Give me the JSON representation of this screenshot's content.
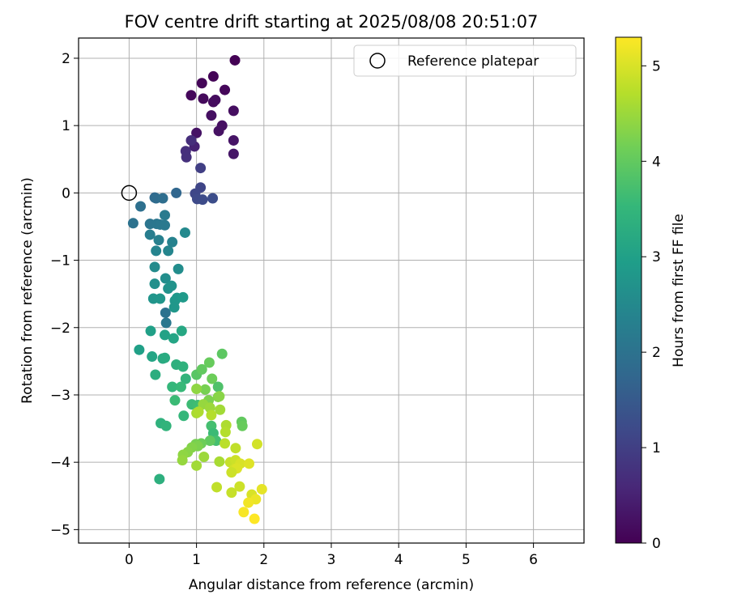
{
  "chart_data": {
    "type": "scatter",
    "title": "FOV centre drift starting at 2025/08/08 20:51:07",
    "xlabel": "Angular distance from reference (arcmin)",
    "ylabel": "Rotation from reference (arcmin)",
    "xlim": [
      -0.75,
      6.75
    ],
    "ylim": [
      -5.2,
      2.3
    ],
    "xticks": [
      0,
      1,
      2,
      3,
      4,
      5,
      6
    ],
    "yticks": [
      2,
      1,
      0,
      -1,
      -2,
      -3,
      -4,
      -5
    ],
    "grid": true,
    "legend": {
      "placement": "top-right",
      "entries": [
        "Reference platepar"
      ]
    },
    "reference_point": {
      "name": "Reference platepar",
      "x": 0,
      "y": 0
    },
    "colorbar": {
      "label": "Hours from first FF file",
      "colormap": "viridis",
      "range": [
        0,
        5.3
      ],
      "ticks": [
        0,
        1,
        2,
        3,
        4,
        5
      ]
    },
    "series": [
      {
        "name": "",
        "points": [
          [
            1.57,
            1.97,
            0.02
          ],
          [
            1.25,
            1.73,
            0.05
          ],
          [
            1.08,
            1.63,
            0.07
          ],
          [
            1.42,
            1.53,
            0.09
          ],
          [
            0.92,
            1.45,
            0.11
          ],
          [
            1.1,
            1.4,
            0.13
          ],
          [
            1.25,
            1.35,
            0.15
          ],
          [
            1.28,
            1.38,
            0.17
          ],
          [
            1.55,
            1.22,
            0.19
          ],
          [
            1.22,
            1.15,
            0.21
          ],
          [
            1.38,
            1.0,
            0.23
          ],
          [
            1.33,
            0.92,
            0.25
          ],
          [
            1.0,
            0.89,
            0.27
          ],
          [
            1.55,
            0.78,
            0.29
          ],
          [
            1.55,
            0.58,
            0.31
          ],
          [
            0.97,
            0.69,
            0.5
          ],
          [
            0.92,
            0.78,
            0.7
          ],
          [
            0.84,
            0.62,
            0.72
          ],
          [
            0.85,
            0.53,
            0.74
          ],
          [
            1.06,
            0.37,
            1.0
          ],
          [
            1.06,
            0.08,
            1.1
          ],
          [
            0.98,
            -0.01,
            1.15
          ],
          [
            1.01,
            -0.09,
            1.2
          ],
          [
            1.09,
            -0.1,
            1.22
          ],
          [
            1.24,
            -0.08,
            1.26
          ],
          [
            0.7,
            0.0,
            1.75
          ],
          [
            0.38,
            -0.07,
            1.8
          ],
          [
            0.4,
            -0.08,
            1.85
          ],
          [
            0.5,
            -0.08,
            1.9
          ],
          [
            0.17,
            -0.2,
            1.95
          ],
          [
            0.06,
            -0.45,
            2.0
          ],
          [
            0.31,
            -0.46,
            2.05
          ],
          [
            0.41,
            -0.46,
            2.08
          ],
          [
            0.46,
            -0.47,
            2.1
          ],
          [
            0.53,
            -0.48,
            2.15
          ],
          [
            0.53,
            -0.33,
            2.2
          ],
          [
            0.31,
            -0.62,
            2.25
          ],
          [
            0.44,
            -0.7,
            2.3
          ],
          [
            0.64,
            -0.73,
            2.35
          ],
          [
            0.4,
            -0.86,
            2.4
          ],
          [
            0.58,
            -0.86,
            2.42
          ],
          [
            0.83,
            -0.59,
            2.5
          ],
          [
            0.38,
            -1.1,
            2.55
          ],
          [
            0.73,
            -1.13,
            2.58
          ],
          [
            0.54,
            -1.27,
            2.6
          ],
          [
            0.38,
            -1.35,
            2.65
          ],
          [
            0.58,
            -1.42,
            2.7
          ],
          [
            0.63,
            -1.38,
            2.72
          ],
          [
            0.36,
            -1.57,
            2.75
          ],
          [
            0.46,
            -1.57,
            2.78
          ],
          [
            0.68,
            -1.6,
            2.8
          ],
          [
            0.71,
            -1.56,
            2.82
          ],
          [
            0.8,
            -1.55,
            2.85
          ],
          [
            0.54,
            -1.78,
            2.0
          ],
          [
            0.55,
            -1.93,
            2.1
          ],
          [
            0.67,
            -1.7,
            2.8
          ],
          [
            0.32,
            -2.05,
            3.0
          ],
          [
            0.53,
            -2.11,
            3.05
          ],
          [
            0.66,
            -2.16,
            3.1
          ],
          [
            0.78,
            -2.05,
            3.15
          ],
          [
            0.15,
            -2.33,
            3.0
          ],
          [
            0.34,
            -2.43,
            3.1
          ],
          [
            0.5,
            -2.46,
            3.2
          ],
          [
            0.53,
            -2.45,
            3.25
          ],
          [
            0.39,
            -2.7,
            3.3
          ],
          [
            0.7,
            -2.55,
            3.35
          ],
          [
            0.8,
            -2.58,
            3.4
          ],
          [
            0.84,
            -2.76,
            3.45
          ],
          [
            0.64,
            -2.88,
            3.5
          ],
          [
            0.77,
            -2.88,
            3.55
          ],
          [
            0.68,
            -3.08,
            3.6
          ],
          [
            0.93,
            -3.14,
            3.62
          ],
          [
            1.02,
            -3.15,
            3.65
          ],
          [
            0.81,
            -3.31,
            3.5
          ],
          [
            0.47,
            -3.42,
            3.4
          ],
          [
            0.55,
            -3.46,
            3.45
          ],
          [
            0.45,
            -4.25,
            3.35
          ],
          [
            1.0,
            -2.7,
            3.9
          ],
          [
            1.08,
            -2.62,
            4.0
          ],
          [
            1.19,
            -2.52,
            4.05
          ],
          [
            1.38,
            -2.39,
            3.95
          ],
          [
            1.23,
            -2.76,
            4.1
          ],
          [
            1.32,
            -2.88,
            3.8
          ],
          [
            1.13,
            -2.92,
            4.2
          ],
          [
            1.18,
            -3.08,
            4.25
          ],
          [
            1.32,
            -3.03,
            4.3
          ],
          [
            1.34,
            -3.02,
            4.35
          ],
          [
            1.0,
            -2.91,
            4.4
          ],
          [
            1.1,
            -3.14,
            4.45
          ],
          [
            1.2,
            -3.19,
            4.5
          ],
          [
            1.35,
            -3.22,
            4.55
          ],
          [
            1.0,
            -3.27,
            4.6
          ],
          [
            1.03,
            -3.25,
            4.65
          ],
          [
            1.22,
            -3.3,
            4.7
          ],
          [
            1.67,
            -3.4,
            4.0
          ],
          [
            1.68,
            -3.46,
            4.05
          ],
          [
            1.22,
            -3.46,
            3.7
          ],
          [
            1.25,
            -3.57,
            3.6
          ],
          [
            1.29,
            -3.68,
            3.7
          ],
          [
            1.2,
            -3.68,
            4.0
          ],
          [
            1.07,
            -3.72,
            4.1
          ],
          [
            0.99,
            -3.73,
            4.2
          ],
          [
            1.02,
            -3.76,
            4.25
          ],
          [
            0.93,
            -3.78,
            4.3
          ],
          [
            0.87,
            -3.85,
            4.35
          ],
          [
            0.8,
            -3.89,
            4.4
          ],
          [
            0.79,
            -3.97,
            4.45
          ],
          [
            1.11,
            -3.92,
            4.5
          ],
          [
            1.0,
            -4.05,
            4.55
          ],
          [
            1.34,
            -3.99,
            4.6
          ],
          [
            1.44,
            -3.45,
            4.65
          ],
          [
            1.43,
            -3.55,
            4.7
          ],
          [
            1.42,
            -3.72,
            4.75
          ],
          [
            1.58,
            -3.79,
            4.8
          ],
          [
            1.5,
            -4.0,
            4.85
          ],
          [
            1.58,
            -3.97,
            4.9
          ],
          [
            1.56,
            -4.1,
            4.95
          ],
          [
            1.65,
            -4.02,
            5.0
          ],
          [
            1.6,
            -4.09,
            5.02
          ],
          [
            1.78,
            -4.02,
            5.05
          ],
          [
            1.52,
            -4.15,
            4.9
          ],
          [
            1.9,
            -3.73,
            4.95
          ],
          [
            1.3,
            -4.37,
            4.8
          ],
          [
            1.52,
            -4.45,
            4.85
          ],
          [
            1.64,
            -4.36,
            4.9
          ],
          [
            1.82,
            -4.48,
            5.0
          ],
          [
            1.97,
            -4.4,
            5.1
          ],
          [
            1.88,
            -4.55,
            5.15
          ],
          [
            1.77,
            -4.6,
            5.2
          ],
          [
            1.7,
            -4.74,
            5.25
          ],
          [
            1.86,
            -4.84,
            5.3
          ]
        ]
      }
    ]
  }
}
